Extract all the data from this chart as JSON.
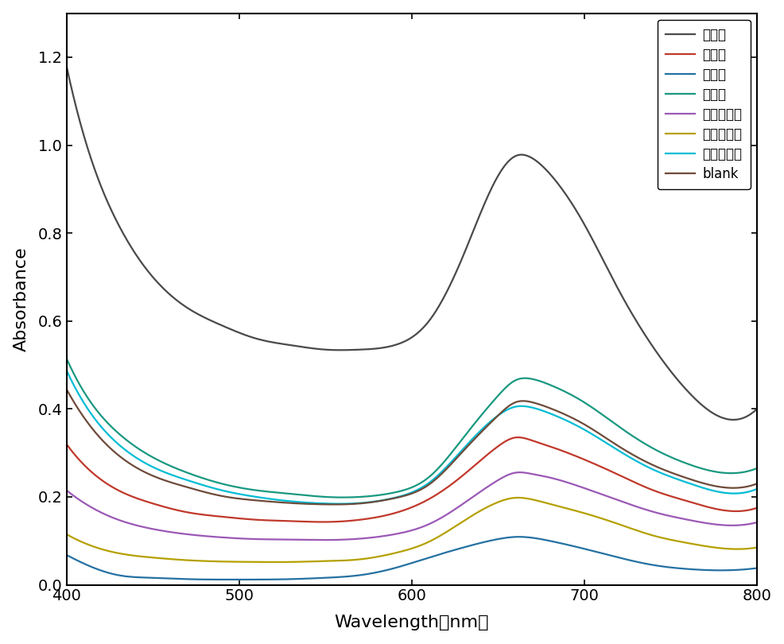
{
  "xlabel": "Wavelength（nm）",
  "ylabel": "Absorbance",
  "xlim": [
    400,
    800
  ],
  "ylim": [
    0,
    1.3
  ],
  "yticks": [
    0.0,
    0.2,
    0.4,
    0.6,
    0.8,
    1.0,
    1.2
  ],
  "xticks": [
    400,
    500,
    600,
    700,
    800
  ],
  "legend_order": [
    "组氨酸",
    "渴离子",
    "氟离子",
    "氯离子",
    "硫酸根离子",
    "碳酸根离子",
    "确酸根离子",
    "blank"
  ],
  "curves": {
    "组氨酸": {
      "wl": [
        400,
        415,
        430,
        450,
        470,
        490,
        510,
        530,
        550,
        570,
        590,
        610,
        630,
        650,
        660,
        670,
        680,
        700,
        720,
        740,
        760,
        780,
        800
      ],
      "abs": [
        1.18,
        0.96,
        0.82,
        0.7,
        0.63,
        0.59,
        0.56,
        0.545,
        0.535,
        0.535,
        0.545,
        0.6,
        0.75,
        0.93,
        0.975,
        0.97,
        0.935,
        0.82,
        0.67,
        0.54,
        0.44,
        0.38,
        0.4
      ],
      "color": "#4a4a4a"
    },
    "渴离子": {
      "wl": [
        400,
        415,
        430,
        450,
        470,
        490,
        510,
        530,
        550,
        570,
        590,
        610,
        630,
        650,
        660,
        670,
        680,
        700,
        720,
        740,
        760,
        780,
        800
      ],
      "abs": [
        0.32,
        0.255,
        0.215,
        0.185,
        0.165,
        0.155,
        0.148,
        0.145,
        0.143,
        0.148,
        0.163,
        0.195,
        0.25,
        0.315,
        0.335,
        0.328,
        0.315,
        0.285,
        0.25,
        0.215,
        0.19,
        0.17,
        0.175
      ],
      "color": "#c0392b"
    },
    "氟离子": {
      "wl": [
        400,
        415,
        430,
        450,
        470,
        490,
        510,
        530,
        550,
        570,
        590,
        610,
        630,
        650,
        660,
        670,
        680,
        700,
        720,
        740,
        760,
        780,
        800
      ],
      "abs": [
        0.068,
        0.04,
        0.022,
        0.016,
        0.013,
        0.012,
        0.012,
        0.013,
        0.016,
        0.022,
        0.038,
        0.062,
        0.085,
        0.104,
        0.109,
        0.107,
        0.1,
        0.082,
        0.062,
        0.045,
        0.036,
        0.033,
        0.038
      ],
      "color": "#2471a3"
    },
    "氯离子": {
      "wl": [
        400,
        415,
        430,
        450,
        470,
        490,
        510,
        530,
        550,
        570,
        590,
        610,
        630,
        650,
        660,
        670,
        680,
        700,
        720,
        740,
        760,
        780,
        800
      ],
      "abs": [
        0.515,
        0.41,
        0.345,
        0.29,
        0.255,
        0.23,
        0.215,
        0.207,
        0.2,
        0.2,
        0.21,
        0.245,
        0.335,
        0.43,
        0.465,
        0.468,
        0.455,
        0.415,
        0.36,
        0.31,
        0.275,
        0.255,
        0.265
      ],
      "color": "#1a9880"
    },
    "硫酸根离子": {
      "wl": [
        400,
        415,
        430,
        450,
        470,
        490,
        510,
        530,
        550,
        570,
        590,
        610,
        630,
        650,
        660,
        670,
        680,
        700,
        720,
        740,
        760,
        780,
        800
      ],
      "abs": [
        0.215,
        0.175,
        0.148,
        0.127,
        0.115,
        0.108,
        0.104,
        0.103,
        0.102,
        0.105,
        0.115,
        0.138,
        0.185,
        0.238,
        0.255,
        0.252,
        0.244,
        0.22,
        0.192,
        0.166,
        0.148,
        0.136,
        0.142
      ],
      "color": "#9b59b6"
    },
    "碳酸根离子": {
      "wl": [
        400,
        415,
        430,
        450,
        470,
        490,
        510,
        530,
        550,
        570,
        590,
        610,
        630,
        650,
        660,
        670,
        680,
        700,
        720,
        740,
        760,
        780,
        800
      ],
      "abs": [
        0.115,
        0.088,
        0.072,
        0.062,
        0.056,
        0.053,
        0.052,
        0.052,
        0.054,
        0.058,
        0.072,
        0.098,
        0.145,
        0.188,
        0.198,
        0.194,
        0.184,
        0.163,
        0.138,
        0.112,
        0.095,
        0.083,
        0.085
      ],
      "color": "#b5a000"
    },
    "确酸根离子": {
      "wl": [
        400,
        415,
        430,
        450,
        470,
        490,
        510,
        530,
        550,
        570,
        590,
        610,
        630,
        650,
        660,
        670,
        680,
        700,
        720,
        740,
        760,
        780,
        800
      ],
      "abs": [
        0.488,
        0.385,
        0.32,
        0.268,
        0.238,
        0.215,
        0.2,
        0.19,
        0.185,
        0.186,
        0.198,
        0.232,
        0.31,
        0.385,
        0.405,
        0.403,
        0.39,
        0.353,
        0.305,
        0.262,
        0.232,
        0.21,
        0.218
      ],
      "color": "#00bcd4"
    },
    "blank": {
      "wl": [
        400,
        415,
        430,
        450,
        470,
        490,
        510,
        530,
        550,
        570,
        590,
        610,
        630,
        650,
        660,
        670,
        680,
        700,
        720,
        740,
        760,
        780,
        800
      ],
      "abs": [
        0.445,
        0.355,
        0.295,
        0.248,
        0.222,
        0.202,
        0.192,
        0.186,
        0.183,
        0.185,
        0.197,
        0.228,
        0.305,
        0.385,
        0.415,
        0.415,
        0.402,
        0.365,
        0.315,
        0.272,
        0.242,
        0.222,
        0.23
      ],
      "color": "#6e4b3a"
    }
  },
  "linewidth": 1.6,
  "background": "#ffffff",
  "tick_fontsize": 14,
  "label_fontsize": 16,
  "legend_fontsize": 12
}
